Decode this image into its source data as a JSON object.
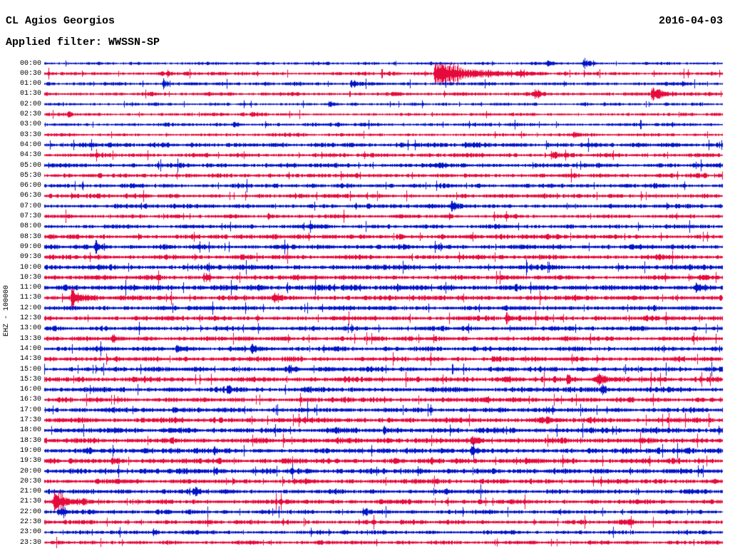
{
  "page": {
    "background": "#ffffff",
    "text_color": "#000000"
  },
  "header": {
    "station": "CL Agios Georgios",
    "date": "2016-04-03",
    "filter": "Applied filter: WWSSN-SP"
  },
  "axis": {
    "channel_label": "EHZ - 100000"
  },
  "chart_data": {
    "type": "line",
    "subtype": "helicorder-drum-seismogram",
    "title": "CL Agios Georgios",
    "date": "2016-04-03",
    "filter": "WWSSN-SP",
    "y_axis_label": "EHZ - 100000",
    "minutes_per_row": 30,
    "first_row_time": "00:00",
    "last_row_time": "23:30",
    "grid": false,
    "legend": false,
    "colors": {
      "blue": "#0013c8",
      "red": "#e60a3c"
    },
    "rows": [
      {
        "label": "00:00",
        "color": "blue",
        "amp": 1.5,
        "events": [
          {
            "x": 0.74,
            "a": 3,
            "t": 4
          },
          {
            "x": 0.795,
            "a": 7,
            "t": 6
          }
        ]
      },
      {
        "label": "00:30",
        "color": "red",
        "amp": 1.8,
        "events": [
          {
            "x": 0.182,
            "a": 4,
            "t": 4
          },
          {
            "x": 0.575,
            "a": 13,
            "t": 42
          },
          {
            "x": 0.7,
            "a": 3,
            "t": 8
          }
        ]
      },
      {
        "label": "01:00",
        "color": "blue",
        "amp": 1.8,
        "events": [
          {
            "x": 0.175,
            "a": 5,
            "t": 5
          },
          {
            "x": 0.452,
            "a": 5,
            "t": 6
          },
          {
            "x": 0.94,
            "a": 3,
            "t": 5
          }
        ]
      },
      {
        "label": "01:30",
        "color": "red",
        "amp": 1.8,
        "events": [
          {
            "x": 0.72,
            "a": 4,
            "t": 10
          },
          {
            "x": 0.895,
            "a": 8,
            "t": 14
          }
        ]
      },
      {
        "label": "02:00",
        "color": "blue",
        "amp": 1.5,
        "events": [
          {
            "x": 0.42,
            "a": 2.5,
            "t": 5
          }
        ]
      },
      {
        "label": "02:30",
        "color": "red",
        "amp": 1.6,
        "events": [
          {
            "x": 0.035,
            "a": 3,
            "t": 5
          },
          {
            "x": 0.305,
            "a": 3,
            "t": 5
          }
        ]
      },
      {
        "label": "03:00",
        "color": "blue",
        "amp": 1.7,
        "events": [
          {
            "x": 0.28,
            "a": 3.5,
            "t": 5
          },
          {
            "x": 0.43,
            "a": 2.5,
            "t": 5
          }
        ]
      },
      {
        "label": "03:30",
        "color": "red",
        "amp": 1.6,
        "events": [
          {
            "x": 0.78,
            "a": 2.5,
            "t": 5
          }
        ]
      },
      {
        "label": "04:00",
        "color": "blue",
        "amp": 2.3,
        "events": [
          {
            "x": 0.62,
            "a": 3,
            "t": 6
          }
        ]
      },
      {
        "label": "04:30",
        "color": "red",
        "amp": 2.1,
        "events": [
          {
            "x": 0.75,
            "a": 3,
            "t": 5
          }
        ]
      },
      {
        "label": "05:00",
        "color": "blue",
        "amp": 2.3,
        "events": []
      },
      {
        "label": "05:30",
        "color": "red",
        "amp": 2.1,
        "events": [
          {
            "x": 0.33,
            "a": 2.5,
            "t": 5
          }
        ]
      },
      {
        "label": "06:00",
        "color": "blue",
        "amp": 2.2,
        "events": []
      },
      {
        "label": "06:30",
        "color": "red",
        "amp": 2.1,
        "events": [
          {
            "x": 0.04,
            "a": 3,
            "t": 5
          }
        ]
      },
      {
        "label": "07:00",
        "color": "blue",
        "amp": 2.2,
        "events": [
          {
            "x": 0.6,
            "a": 4.5,
            "t": 10
          }
        ]
      },
      {
        "label": "07:30",
        "color": "red",
        "amp": 2.0,
        "events": [
          {
            "x": 0.33,
            "a": 2.5,
            "t": 5
          }
        ]
      },
      {
        "label": "08:00",
        "color": "blue",
        "amp": 2.1,
        "events": []
      },
      {
        "label": "08:30",
        "color": "red",
        "amp": 2.4,
        "events": [
          {
            "x": 0.52,
            "a": 3,
            "t": 6
          }
        ]
      },
      {
        "label": "09:00",
        "color": "blue",
        "amp": 2.4,
        "events": [
          {
            "x": 0.075,
            "a": 5,
            "t": 8
          }
        ]
      },
      {
        "label": "09:30",
        "color": "red",
        "amp": 2.4,
        "events": [
          {
            "x": 0.29,
            "a": 3.5,
            "t": 6
          }
        ]
      },
      {
        "label": "10:00",
        "color": "blue",
        "amp": 2.6,
        "events": [
          {
            "x": 0.24,
            "a": 3.5,
            "t": 6
          }
        ]
      },
      {
        "label": "10:30",
        "color": "red",
        "amp": 2.4,
        "events": [
          {
            "x": 0.235,
            "a": 4,
            "t": 7
          }
        ]
      },
      {
        "label": "11:00",
        "color": "blue",
        "amp": 2.9,
        "events": [
          {
            "x": 0.52,
            "a": 3,
            "t": 6
          },
          {
            "x": 0.96,
            "a": 3.5,
            "t": 6
          }
        ]
      },
      {
        "label": "11:30",
        "color": "red",
        "amp": 2.6,
        "events": [
          {
            "x": 0.04,
            "a": 7,
            "t": 12
          },
          {
            "x": 0.34,
            "a": 4.5,
            "t": 6
          }
        ]
      },
      {
        "label": "12:00",
        "color": "blue",
        "amp": 2.4,
        "events": []
      },
      {
        "label": "12:30",
        "color": "red",
        "amp": 2.4,
        "events": [
          {
            "x": 0.68,
            "a": 4.5,
            "t": 7
          }
        ]
      },
      {
        "label": "13:00",
        "color": "blue",
        "amp": 2.4,
        "events": []
      },
      {
        "label": "13:30",
        "color": "red",
        "amp": 2.4,
        "events": [
          {
            "x": 0.1,
            "a": 3,
            "t": 5
          }
        ]
      },
      {
        "label": "14:00",
        "color": "blue",
        "amp": 2.4,
        "events": [
          {
            "x": 0.195,
            "a": 3.5,
            "t": 5
          },
          {
            "x": 0.305,
            "a": 6.5,
            "t": 8
          }
        ]
      },
      {
        "label": "14:30",
        "color": "red",
        "amp": 2.4,
        "events": [
          {
            "x": 0.66,
            "a": 3,
            "t": 5
          }
        ]
      },
      {
        "label": "15:00",
        "color": "blue",
        "amp": 2.5,
        "events": [
          {
            "x": 0.36,
            "a": 3.5,
            "t": 6
          }
        ]
      },
      {
        "label": "15:30",
        "color": "red",
        "amp": 2.7,
        "events": [
          {
            "x": 0.77,
            "a": 4.5,
            "t": 8
          },
          {
            "x": 0.815,
            "a": 5,
            "t": 8
          }
        ]
      },
      {
        "label": "16:00",
        "color": "blue",
        "amp": 2.7,
        "events": [
          {
            "x": 0.27,
            "a": 3.5,
            "t": 5
          },
          {
            "x": 0.82,
            "a": 4.5,
            "t": 6
          }
        ]
      },
      {
        "label": "16:30",
        "color": "red",
        "amp": 2.5,
        "events": []
      },
      {
        "label": "17:00",
        "color": "blue",
        "amp": 2.5,
        "events": [
          {
            "x": 0.19,
            "a": 3.5,
            "t": 5
          },
          {
            "x": 0.74,
            "a": 3,
            "t": 5
          }
        ]
      },
      {
        "label": "17:30",
        "color": "red",
        "amp": 2.7,
        "events": [
          {
            "x": 0.74,
            "a": 3.5,
            "t": 6
          }
        ]
      },
      {
        "label": "18:00",
        "color": "blue",
        "amp": 2.8,
        "events": [
          {
            "x": 0.5,
            "a": 3,
            "t": 6
          }
        ]
      },
      {
        "label": "18:30",
        "color": "red",
        "amp": 2.9,
        "events": [
          {
            "x": 0.63,
            "a": 4,
            "t": 7
          }
        ]
      },
      {
        "label": "19:00",
        "color": "blue",
        "amp": 2.7,
        "events": [
          {
            "x": 0.06,
            "a": 3.5,
            "t": 5
          },
          {
            "x": 0.25,
            "a": 3.5,
            "t": 5
          },
          {
            "x": 0.63,
            "a": 3.5,
            "t": 5
          }
        ]
      },
      {
        "label": "19:30",
        "color": "red",
        "amp": 2.7,
        "events": [
          {
            "x": 0.1,
            "a": 3.5,
            "t": 5
          }
        ]
      },
      {
        "label": "20:00",
        "color": "blue",
        "amp": 2.7,
        "events": [
          {
            "x": 0.25,
            "a": 3.5,
            "t": 6
          },
          {
            "x": 0.55,
            "a": 3.5,
            "t": 6
          }
        ]
      },
      {
        "label": "20:30",
        "color": "red",
        "amp": 2.5,
        "events": []
      },
      {
        "label": "21:00",
        "color": "blue",
        "amp": 2.4,
        "events": [
          {
            "x": 0.22,
            "a": 4.5,
            "t": 6
          }
        ]
      },
      {
        "label": "21:30",
        "color": "red",
        "amp": 2.4,
        "events": [
          {
            "x": 0.015,
            "a": 11,
            "t": 16
          }
        ]
      },
      {
        "label": "22:00",
        "color": "blue",
        "amp": 2.2,
        "events": [
          {
            "x": 0.02,
            "a": 4,
            "t": 10
          },
          {
            "x": 0.47,
            "a": 3.5,
            "t": 6
          }
        ]
      },
      {
        "label": "22:30",
        "color": "red",
        "amp": 2.2,
        "events": [
          {
            "x": 0.86,
            "a": 3.5,
            "t": 6
          }
        ]
      },
      {
        "label": "23:00",
        "color": "blue",
        "amp": 2.0,
        "events": [
          {
            "x": 0.16,
            "a": 3.5,
            "t": 5
          },
          {
            "x": 0.44,
            "a": 3,
            "t": 5
          }
        ]
      },
      {
        "label": "23:30",
        "color": "red",
        "amp": 2.0,
        "events": []
      }
    ]
  }
}
